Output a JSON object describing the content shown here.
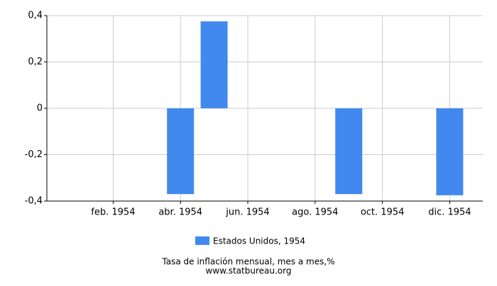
{
  "chart_data": {
    "type": "bar",
    "title": "Tasa de inflación mensual, mes a mes,%",
    "source": "www.statbureau.org",
    "categories": [
      null,
      "feb. 1954",
      null,
      "abr. 1954",
      null,
      "jun. 1954",
      null,
      "ago. 1954",
      null,
      "oct. 1954",
      null,
      "dic. 1954"
    ],
    "series": [
      {
        "name": "Estados Unidos, 1954",
        "color": "#4189ee",
        "values": [
          0,
          0,
          0,
          -0.37,
          0.375,
          0,
          0,
          0,
          -0.37,
          0,
          0,
          -0.375
        ]
      }
    ],
    "ylim": [
      -0.4,
      0.4
    ],
    "yticks": [
      {
        "value": -0.4,
        "label": "-0,4"
      },
      {
        "value": -0.2,
        "label": "-0,2"
      },
      {
        "value": 0,
        "label": "0"
      },
      {
        "value": 0.2,
        "label": "0,2"
      },
      {
        "value": 0.4,
        "label": "0,4"
      }
    ],
    "grid": true
  }
}
